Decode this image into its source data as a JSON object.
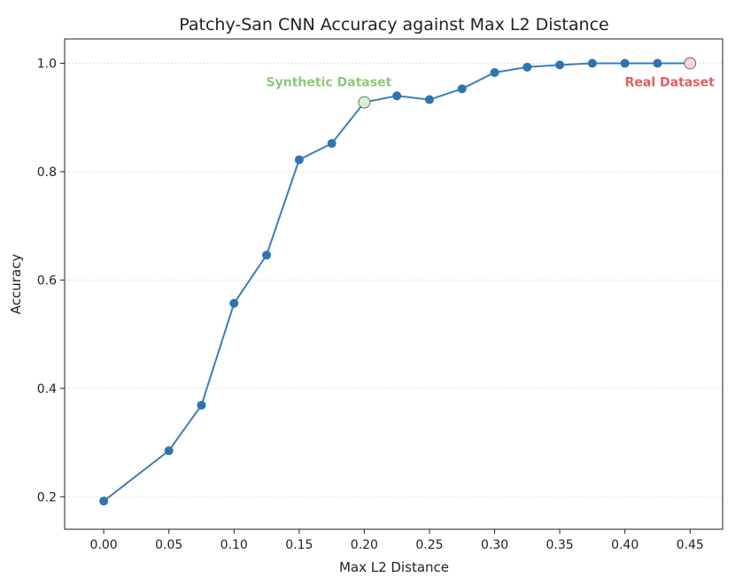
{
  "chart_data": {
    "type": "line",
    "title": "Patchy-San CNN Accuracy against Max L2 Distance",
    "xlabel": "Max L2 Distance",
    "ylabel": "Accuracy",
    "xlim": [
      -0.03,
      0.475
    ],
    "ylim": [
      0.14,
      1.045
    ],
    "grid": "horizontal",
    "xticks": [
      0.0,
      0.05,
      0.1,
      0.15,
      0.2,
      0.25,
      0.3,
      0.35,
      0.4,
      0.45
    ],
    "xtick_labels": [
      "0.00",
      "0.05",
      "0.10",
      "0.15",
      "0.20",
      "0.25",
      "0.30",
      "0.35",
      "0.40",
      "0.45"
    ],
    "yticks": [
      0.2,
      0.4,
      0.6,
      0.8,
      1.0
    ],
    "ytick_labels": [
      "0.2",
      "0.4",
      "0.6",
      "0.8",
      "1.0"
    ],
    "series": [
      {
        "color": "#3a7ebb",
        "x": [
          0.0,
          0.05,
          0.075,
          0.1,
          0.125,
          0.15,
          0.175,
          0.2,
          0.225,
          0.25,
          0.275,
          0.3,
          0.325,
          0.35,
          0.375,
          0.4,
          0.425,
          0.45
        ],
        "y": [
          0.192,
          0.285,
          0.369,
          0.557,
          0.646,
          0.822,
          0.852,
          0.928,
          0.94,
          0.933,
          0.953,
          0.983,
          0.993,
          0.997,
          1.0,
          1.0,
          1.0,
          1.0
        ]
      }
    ],
    "annotations": [
      {
        "text": "Synthetic Dataset",
        "x": 0.2,
        "y": 0.928,
        "color": "#8bc97a",
        "marker_fill": "#d8efd2"
      },
      {
        "text": "Real Dataset",
        "x": 0.45,
        "y": 1.0,
        "color": "#e05f5f",
        "marker_fill": "#fbd3d3"
      }
    ]
  }
}
